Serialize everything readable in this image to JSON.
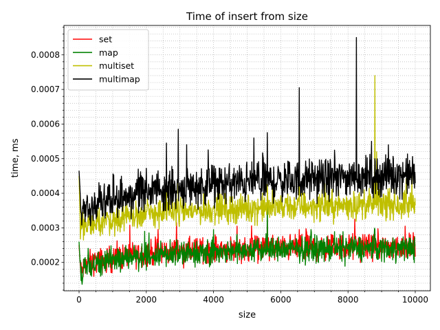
{
  "chart_data": {
    "type": "line",
    "title": "Time of insert from size",
    "xlabel": "size",
    "ylabel": "time, ms",
    "xlim": [
      -450,
      10450
    ],
    "ylim": [
      0.000118,
      0.000885
    ],
    "xticks": [
      0,
      2000,
      4000,
      6000,
      8000,
      10000
    ],
    "xtick_labels": [
      "0",
      "2000",
      "4000",
      "6000",
      "8000",
      "10000"
    ],
    "yticks": [
      0.0002,
      0.0003,
      0.0004,
      0.0005,
      0.0006,
      0.0007,
      0.0008
    ],
    "ytick_labels": [
      "0.0002",
      "0.0003",
      "0.0004",
      "0.0005",
      "0.0006",
      "0.0007",
      "0.0008"
    ],
    "grid": "major and minor, dotted",
    "legend_position": "upper-left",
    "x_step": 10,
    "series": [
      {
        "name": "set",
        "color": "#ff0000",
        "anchors": [
          [
            0,
            0.00025
          ],
          [
            50,
            0.00017
          ],
          [
            200,
            0.000195
          ],
          [
            1000,
            0.000212
          ],
          [
            2000,
            0.000228
          ],
          [
            3000,
            0.000232
          ],
          [
            4000,
            0.000238
          ],
          [
            6000,
            0.000242
          ],
          [
            8000,
            0.000245
          ],
          [
            10000,
            0.000245
          ]
        ],
        "noise": 1.8e-05,
        "spikes": [
          [
            2350,
            0.000295
          ],
          [
            2900,
            0.000315
          ],
          [
            4700,
            0.000305
          ],
          [
            5600,
            0.000345
          ],
          [
            6550,
            0.000295
          ],
          [
            8200,
            0.000325
          ],
          [
            9700,
            0.000305
          ]
        ]
      },
      {
        "name": "map",
        "color": "#008000",
        "anchors": [
          [
            0,
            0.00026
          ],
          [
            50,
            0.00016
          ],
          [
            200,
            0.000192
          ],
          [
            1000,
            0.000208
          ],
          [
            2000,
            0.000222
          ],
          [
            3000,
            0.000228
          ],
          [
            4000,
            0.000232
          ],
          [
            6000,
            0.000238
          ],
          [
            8000,
            0.00024
          ],
          [
            10000,
            0.000242
          ]
        ],
        "noise": 1.8e-05,
        "spikes": [
          [
            1950,
            0.00029
          ],
          [
            4000,
            0.000295
          ],
          [
            5600,
            0.000385
          ],
          [
            6900,
            0.000295
          ],
          [
            8800,
            0.000295
          ]
        ]
      },
      {
        "name": "multiset",
        "color": "#bfbf00",
        "anchors": [
          [
            0,
            0.00045
          ],
          [
            40,
            0.000295
          ],
          [
            300,
            0.000315
          ],
          [
            1000,
            0.000325
          ],
          [
            2000,
            0.00034
          ],
          [
            3000,
            0.000348
          ],
          [
            4000,
            0.000352
          ],
          [
            6000,
            0.00036
          ],
          [
            8000,
            0.000365
          ],
          [
            10000,
            0.000368
          ]
        ],
        "noise": 2e-05,
        "spikes": [
          [
            2600,
            0.000435
          ],
          [
            2950,
            0.00044
          ],
          [
            5600,
            0.000425
          ],
          [
            6550,
            0.00042
          ],
          [
            8800,
            0.00074
          ],
          [
            8850,
            0.00052
          ],
          [
            9900,
            0.00045
          ]
        ]
      },
      {
        "name": "multimap",
        "color": "#000000",
        "anchors": [
          [
            0,
            0.000465
          ],
          [
            60,
            0.000345
          ],
          [
            300,
            0.000365
          ],
          [
            1000,
            0.000385
          ],
          [
            2000,
            0.000405
          ],
          [
            3000,
            0.000415
          ],
          [
            4000,
            0.000425
          ],
          [
            6000,
            0.000435
          ],
          [
            8000,
            0.000445
          ],
          [
            10000,
            0.000455
          ]
        ],
        "noise": 2.8e-05,
        "spikes": [
          [
            2600,
            0.000545
          ],
          [
            2950,
            0.000585
          ],
          [
            3200,
            0.00054
          ],
          [
            5200,
            0.00056
          ],
          [
            5600,
            0.000575
          ],
          [
            6550,
            0.000705
          ],
          [
            8250,
            0.00085
          ],
          [
            8700,
            0.00055
          ],
          [
            9200,
            0.00054
          ]
        ]
      }
    ]
  }
}
